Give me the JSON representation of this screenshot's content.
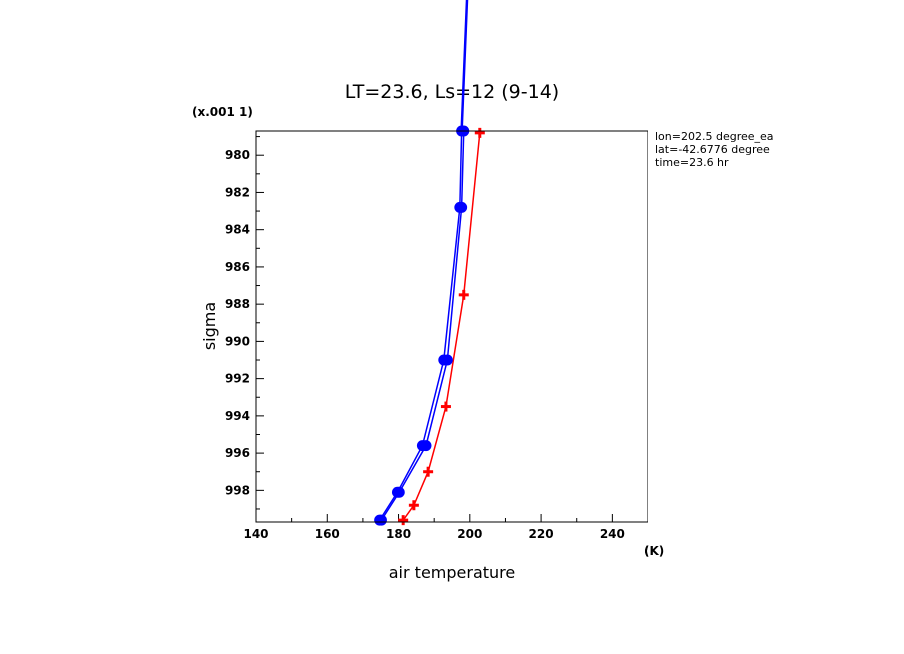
{
  "chart_data": {
    "type": "line",
    "title": "LT=23.6, Ls=12 (9-14)",
    "xlabel": "air temperature",
    "ylabel": "sigma",
    "x_units": "(K)",
    "y_units": "(x.001 1)",
    "xlim": [
      140,
      250
    ],
    "ylim": [
      999.7,
      978.7
    ],
    "y_inverted": true,
    "x_ticks": [
      140,
      160,
      180,
      200,
      220,
      240
    ],
    "y_ticks": [
      980,
      982,
      984,
      986,
      988,
      990,
      992,
      994,
      996,
      998
    ],
    "grid": false,
    "legend": "none",
    "annotations": [
      "lon=202.5 degree_ea",
      "lat=-42.6776 degree",
      "time=23.6 hr"
    ],
    "series": [
      {
        "color": "#ff0000",
        "marker": "plus",
        "x": [
          181.3,
          184.3,
          188.3,
          193.3,
          198.3,
          202.8
        ],
        "y": [
          999.6,
          998.8,
          997.0,
          993.5,
          987.5,
          978.8
        ]
      },
      {
        "color": "#0000ff",
        "marker": "circle",
        "x": [
          174.7,
          179.7,
          186.7,
          192.7,
          197.2,
          197.7
        ],
        "y": [
          999.6,
          998.1,
          995.6,
          991.0,
          982.8,
          978.7
        ]
      },
      {
        "color": "#0000ff",
        "marker": "circle",
        "x": [
          175.2,
          180.2,
          187.7,
          193.7,
          197.7,
          198.3
        ],
        "y": [
          999.6,
          998.1,
          995.6,
          991.0,
          982.8,
          978.7
        ]
      }
    ]
  }
}
